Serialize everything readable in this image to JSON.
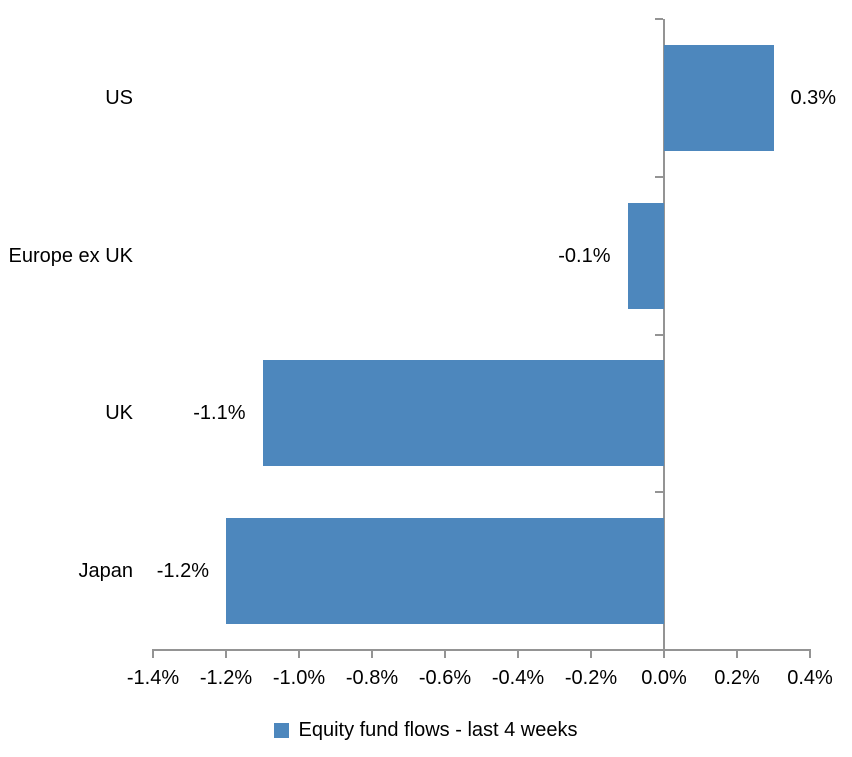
{
  "chart_data": {
    "type": "bar",
    "orientation": "horizontal",
    "title": "",
    "xlabel": "",
    "ylabel": "",
    "categories": [
      "US",
      "Europe ex UK",
      "UK",
      "Japan"
    ],
    "series": [
      {
        "name": "Equity fund flows - last 4 weeks",
        "values": [
          0.3,
          -0.1,
          -1.1,
          -1.2
        ],
        "value_labels": [
          "0.3%",
          "-0.1%",
          "-1.1%",
          "-1.2%"
        ]
      }
    ],
    "xlim": [
      -1.4,
      0.4
    ],
    "x_ticks": [
      -1.4,
      -1.2,
      -1.0,
      -0.8,
      -0.6,
      -0.4,
      -0.2,
      0.0,
      0.2,
      0.4
    ],
    "x_tick_labels": [
      "-1.4%",
      "-1.2%",
      "-1.0%",
      "-0.8%",
      "-0.6%",
      "-0.4%",
      "-0.2%",
      "0.0%",
      "0.2%",
      "0.4%"
    ],
    "grid": false,
    "data_label_position": "outside-end",
    "legend_position": "bottom-center",
    "legend": [
      {
        "label": "Equity fund flows - last 4 weeks",
        "color": "#4d87bd"
      }
    ],
    "colors": {
      "bar": "#4d87bd",
      "axis": "#949494",
      "text": "#000000",
      "background": "#ffffff"
    }
  }
}
